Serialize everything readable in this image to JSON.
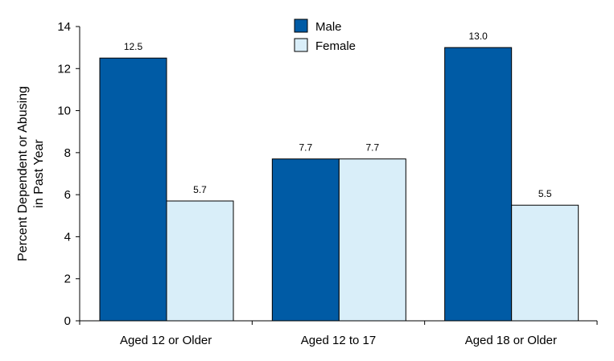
{
  "chart_data": {
    "type": "bar",
    "categories": [
      "Aged 12 or Older",
      "Aged 12 to 17",
      "Aged 18 or Older"
    ],
    "series": [
      {
        "name": "Male",
        "values": [
          12.5,
          7.7,
          13.0
        ],
        "labels": [
          "12.5",
          "7.7",
          "13.0"
        ],
        "color": "#005BA5"
      },
      {
        "name": "Female",
        "values": [
          5.7,
          7.7,
          5.5
        ],
        "labels": [
          "5.7",
          "7.7",
          "5.5"
        ],
        "color": "#D9EEF9"
      }
    ],
    "ylabel_lines": [
      "Percent Dependent or Abusing",
      "in Past Year"
    ],
    "ylim": [
      0,
      14
    ],
    "yticks": [
      0,
      2,
      4,
      6,
      8,
      10,
      12,
      14
    ],
    "grid": false,
    "legend_position": "top-center"
  }
}
